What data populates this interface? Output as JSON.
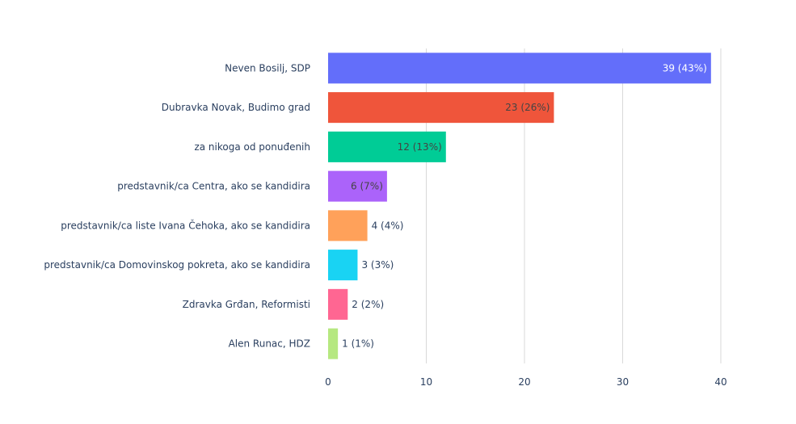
{
  "chart_data": {
    "type": "bar",
    "orientation": "horizontal",
    "categories": [
      "Neven Bosilj, SDP",
      "Dubravka Novak, Budimo grad",
      "za nikoga od ponuđenih",
      "predstavnik/ca Centra, ako se kandidira",
      "predstavnik/ca liste Ivana Čehoka, ako se kandidira",
      "predstavnik/ca Domovinskog pokreta, ako se kandidira",
      "Zdravka Grđan, Reformisti",
      "Alen Runac, HDZ"
    ],
    "values": [
      39,
      23,
      12,
      6,
      4,
      3,
      2,
      1
    ],
    "data_labels": [
      "39 (43%)",
      "23 (26%)",
      "12 (13%)",
      "6 (7%)",
      "4 (4%)",
      "3 (3%)",
      "2 (2%)",
      "1 (1%)"
    ],
    "colors": [
      "#636efa",
      "#ef553b",
      "#00cc96",
      "#ab63fa",
      "#ffa15a",
      "#19d3f3",
      "#ff6692",
      "#b6e880"
    ],
    "label_colors": [
      "#ffffff",
      "#444444",
      "#444444",
      "#444444",
      "#444444",
      "#444444",
      "#444444",
      "#444444"
    ],
    "label_position": [
      "inside",
      "inside",
      "inside",
      "inside",
      "outside",
      "outside",
      "outside",
      "outside"
    ],
    "xticks": [
      "0",
      "10",
      "20",
      "30",
      "40"
    ],
    "xtick_values": [
      0,
      10,
      20,
      30,
      40
    ],
    "xlim": [
      0,
      45.6
    ],
    "grid": "vertical",
    "title": "",
    "xlabel": "",
    "ylabel": ""
  }
}
